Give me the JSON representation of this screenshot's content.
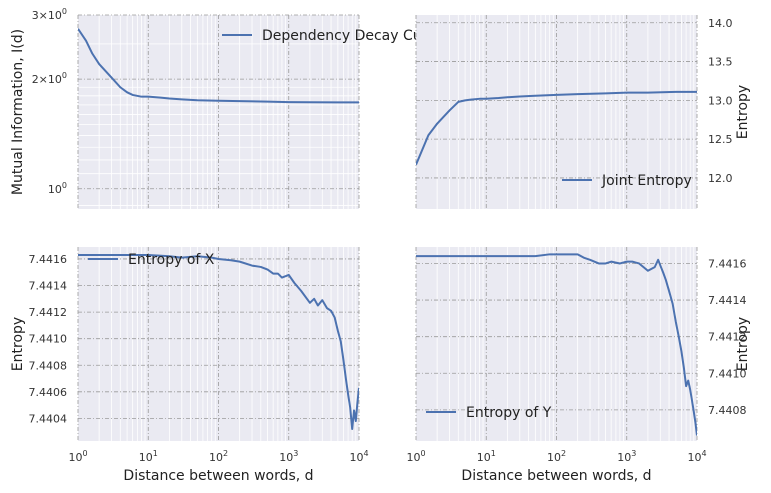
{
  "chart_data": [
    {
      "type": "line",
      "x_scale": "log",
      "y_scale": "log",
      "xlim": [
        1,
        10000
      ],
      "ylim": [
        0.88,
        3.0
      ],
      "ylabel": "Mutual Information, I(d)",
      "xlabel": "",
      "y_right": false,
      "show_x_ticklabels": false,
      "legend_position": "top-right",
      "yticks": [
        {
          "value": 1,
          "label": "10",
          "sup": "0"
        },
        {
          "value": 2,
          "label": "2×10",
          "sup": "0"
        },
        {
          "value": 3,
          "label": "3×10",
          "sup": "0"
        }
      ],
      "series": [
        {
          "name": "Dependency Decay Curve",
          "x": [
            1,
            1.3,
            1.6,
            2,
            3,
            4,
            5,
            6,
            8,
            10,
            15,
            20,
            30,
            50,
            100,
            200,
            500,
            1000,
            2000,
            5000,
            10000
          ],
          "y": [
            2.75,
            2.55,
            2.35,
            2.2,
            2.02,
            1.9,
            1.84,
            1.81,
            1.79,
            1.79,
            1.78,
            1.77,
            1.76,
            1.75,
            1.745,
            1.74,
            1.735,
            1.73,
            1.728,
            1.727,
            1.727
          ]
        }
      ]
    },
    {
      "type": "line",
      "x_scale": "log",
      "y_scale": "linear",
      "xlim": [
        1,
        10000
      ],
      "ylim": [
        11.6,
        14.1
      ],
      "ylabel": "Entropy",
      "xlabel": "",
      "y_right": true,
      "show_x_ticklabels": false,
      "legend_position": "bottom-right",
      "yticks": [
        {
          "value": 12.0,
          "label": "12.0"
        },
        {
          "value": 12.5,
          "label": "12.5"
        },
        {
          "value": 13.0,
          "label": "13.0"
        },
        {
          "value": 13.5,
          "label": "13.5"
        },
        {
          "value": 14.0,
          "label": "14.0"
        }
      ],
      "series": [
        {
          "name": "Joint Entropy",
          "x": [
            1,
            1.5,
            2,
            3,
            4,
            5,
            6,
            8,
            10,
            15,
            20,
            30,
            50,
            100,
            200,
            500,
            1000,
            2000,
            5000,
            10000
          ],
          "y": [
            12.17,
            12.55,
            12.7,
            12.87,
            12.98,
            13.0,
            13.01,
            13.02,
            13.02,
            13.03,
            13.04,
            13.05,
            13.06,
            13.07,
            13.08,
            13.09,
            13.1,
            13.1,
            13.11,
            13.11
          ]
        }
      ]
    },
    {
      "type": "line",
      "x_scale": "log",
      "y_scale": "linear",
      "xlim": [
        1,
        10000
      ],
      "ylim": [
        7.44023,
        7.44169
      ],
      "ylabel": "Entropy",
      "xlabel": "Distance between words, d",
      "y_right": false,
      "show_x_ticklabels": true,
      "legend_position": "top-left",
      "yticks": [
        {
          "value": 7.4404,
          "label": "7.4404"
        },
        {
          "value": 7.4406,
          "label": "7.4406"
        },
        {
          "value": 7.4408,
          "label": "7.4408"
        },
        {
          "value": 7.441,
          "label": "7.4410"
        },
        {
          "value": 7.4412,
          "label": "7.4412"
        },
        {
          "value": 7.4414,
          "label": "7.4414"
        },
        {
          "value": 7.4416,
          "label": "7.4416"
        }
      ],
      "xticks": [
        {
          "value": 1,
          "label": "10",
          "sup": "0"
        },
        {
          "value": 10,
          "label": "10",
          "sup": "1"
        },
        {
          "value": 100,
          "label": "10",
          "sup": "2"
        },
        {
          "value": 1000,
          "label": "10",
          "sup": "3"
        },
        {
          "value": 10000,
          "label": "10",
          "sup": "4"
        }
      ],
      "series": [
        {
          "name": "Entropy of X",
          "x": [
            1,
            3,
            10,
            20,
            30,
            50,
            80,
            100,
            150,
            200,
            300,
            400,
            500,
            600,
            700,
            800,
            1000,
            1200,
            1500,
            2000,
            2300,
            2600,
            3000,
            3500,
            4000,
            4500,
            5000,
            5500,
            6000,
            6500,
            7000,
            7500,
            8000,
            8500,
            9000,
            9500,
            10000
          ],
          "y": [
            7.44163,
            7.44163,
            7.44163,
            7.44162,
            7.44161,
            7.44162,
            7.44161,
            7.4416,
            7.44159,
            7.44158,
            7.44155,
            7.44154,
            7.44152,
            7.44149,
            7.44149,
            7.44146,
            7.44148,
            7.44142,
            7.44136,
            7.44127,
            7.4413,
            7.44125,
            7.44129,
            7.44123,
            7.44121,
            7.44116,
            7.44106,
            7.44098,
            7.44084,
            7.4407,
            7.44058,
            7.44048,
            7.44032,
            7.44046,
            7.44038,
            7.44052,
            7.44063
          ]
        }
      ]
    },
    {
      "type": "line",
      "x_scale": "log",
      "y_scale": "linear",
      "xlim": [
        1,
        10000
      ],
      "ylim": [
        7.44063,
        7.44169
      ],
      "ylabel": "Entropy",
      "xlabel": "Distance between words, d",
      "y_right": true,
      "show_x_ticklabels": true,
      "legend_position": "bottom-left",
      "yticks": [
        {
          "value": 7.4408,
          "label": "7.4408"
        },
        {
          "value": 7.441,
          "label": "7.4410"
        },
        {
          "value": 7.4412,
          "label": "7.4412"
        },
        {
          "value": 7.4414,
          "label": "7.4414"
        },
        {
          "value": 7.4416,
          "label": "7.4416"
        }
      ],
      "xticks": [
        {
          "value": 1,
          "label": "10",
          "sup": "0"
        },
        {
          "value": 10,
          "label": "10",
          "sup": "1"
        },
        {
          "value": 100,
          "label": "10",
          "sup": "2"
        },
        {
          "value": 1000,
          "label": "10",
          "sup": "3"
        },
        {
          "value": 10000,
          "label": "10",
          "sup": "4"
        }
      ],
      "series": [
        {
          "name": "Entropy of Y",
          "x": [
            1,
            10,
            50,
            80,
            100,
            150,
            200,
            250,
            300,
            400,
            500,
            600,
            800,
            1000,
            1200,
            1500,
            2000,
            2500,
            2800,
            3000,
            3300,
            3600,
            4000,
            4500,
            5000,
            5500,
            6000,
            6500,
            7000,
            7500,
            8000,
            8500,
            9000,
            9500,
            10000
          ],
          "y": [
            7.44164,
            7.44164,
            7.44164,
            7.44165,
            7.44165,
            7.44165,
            7.44165,
            7.44163,
            7.44162,
            7.4416,
            7.4416,
            7.44161,
            7.4416,
            7.44161,
            7.44161,
            7.4416,
            7.44156,
            7.44158,
            7.44162,
            7.44159,
            7.44155,
            7.44151,
            7.44145,
            7.44138,
            7.44128,
            7.4412,
            7.44112,
            7.44103,
            7.44093,
            7.44096,
            7.44091,
            7.44085,
            7.44079,
            7.44073,
            7.44066
          ]
        }
      ]
    }
  ],
  "colors": {
    "line": "#4c72b0",
    "axes_bg": "#eaeaf2",
    "grid_major": "#9a9a9a",
    "grid_minor": "#ffffff"
  }
}
